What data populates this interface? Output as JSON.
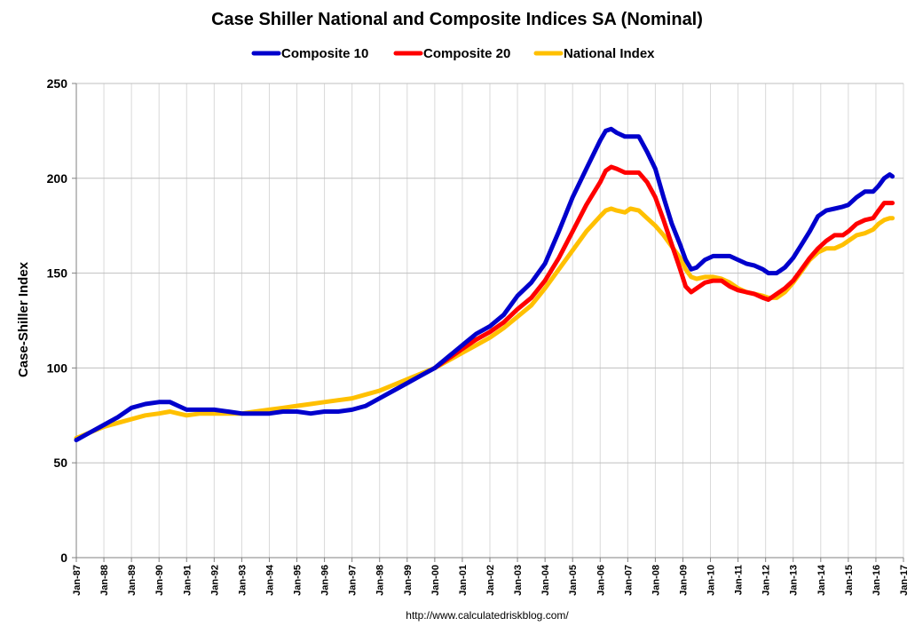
{
  "chart_data": {
    "type": "line",
    "title": "Case Shiller National and Composite Indices SA (Nominal)",
    "xlabel": "",
    "ylabel": "Case-Shiller Index",
    "ylim": [
      0,
      250
    ],
    "yticks": [
      0,
      50,
      100,
      150,
      200,
      250
    ],
    "xlim": [
      1987,
      2017
    ],
    "xtick_labels": [
      "Jan-87",
      "Jan-88",
      "Jan-89",
      "Jan-90",
      "Jan-91",
      "Jan-92",
      "Jan-93",
      "Jan-94",
      "Jan-95",
      "Jan-96",
      "Jan-97",
      "Jan-98",
      "Jan-99",
      "Jan-00",
      "Jan-01",
      "Jan-02",
      "Jan-03",
      "Jan-04",
      "Jan-05",
      "Jan-06",
      "Jan-07",
      "Jan-08",
      "Jan-09",
      "Jan-10",
      "Jan-11",
      "Jan-12",
      "Jan-13",
      "Jan-14",
      "Jan-15",
      "Jan-16",
      "Jan-17"
    ],
    "grid": true,
    "legend_position": "top-center",
    "series": [
      {
        "name": "Composite 10",
        "color": "#0000cc",
        "x": [
          1987,
          1987.5,
          1988,
          1988.5,
          1989,
          1989.5,
          1990,
          1990.4,
          1990.7,
          1991,
          1991.5,
          1992,
          1992.5,
          1993,
          1993.5,
          1994,
          1994.5,
          1995,
          1995.5,
          1996,
          1996.5,
          1997,
          1997.5,
          1998,
          1998.5,
          1999,
          1999.5,
          2000,
          2000.5,
          2001,
          2001.5,
          2002,
          2002.5,
          2003,
          2003.5,
          2004,
          2004.5,
          2005,
          2005.5,
          2006,
          2006.2,
          2006.4,
          2006.6,
          2006.9,
          2007.1,
          2007.4,
          2007.7,
          2008,
          2008.3,
          2008.6,
          2008.9,
          2009.1,
          2009.3,
          2009.5,
          2009.8,
          2010.1,
          2010.4,
          2010.7,
          2011,
          2011.3,
          2011.6,
          2011.9,
          2012.1,
          2012.4,
          2012.7,
          2013,
          2013.3,
          2013.6,
          2013.9,
          2014.2,
          2014.5,
          2014.8,
          2015,
          2015.3,
          2015.6,
          2015.9,
          2016.1,
          2016.3,
          2016.5,
          2016.6
        ],
        "y": [
          62,
          66,
          70,
          74,
          79,
          81,
          82,
          82,
          80,
          78,
          78,
          78,
          77,
          76,
          76,
          76,
          77,
          77,
          76,
          77,
          77,
          78,
          80,
          84,
          88,
          92,
          96,
          100,
          106,
          112,
          118,
          122,
          128,
          138,
          145,
          155,
          172,
          190,
          205,
          220,
          225,
          226,
          224,
          222,
          222,
          222,
          214,
          205,
          190,
          176,
          165,
          157,
          152,
          153,
          157,
          159,
          159,
          159,
          157,
          155,
          154,
          152,
          150,
          150,
          153,
          158,
          165,
          172,
          180,
          183,
          184,
          185,
          186,
          190,
          193,
          193,
          196,
          200,
          202,
          201
        ]
      },
      {
        "name": "Composite 20",
        "color": "#ff0000",
        "x": [
          2000,
          2000.5,
          2001,
          2001.5,
          2002,
          2002.5,
          2003,
          2003.5,
          2004,
          2004.5,
          2005,
          2005.5,
          2006,
          2006.2,
          2006.4,
          2006.6,
          2006.9,
          2007.1,
          2007.4,
          2007.7,
          2008,
          2008.3,
          2008.6,
          2008.9,
          2009.1,
          2009.3,
          2009.5,
          2009.8,
          2010.1,
          2010.4,
          2010.7,
          2011,
          2011.3,
          2011.6,
          2011.9,
          2012.1,
          2012.4,
          2012.7,
          2013,
          2013.3,
          2013.6,
          2013.9,
          2014.2,
          2014.5,
          2014.8,
          2015,
          2015.3,
          2015.6,
          2015.9,
          2016.1,
          2016.3,
          2016.5,
          2016.6
        ],
        "y": [
          100,
          105,
          110,
          115,
          119,
          124,
          131,
          137,
          146,
          158,
          172,
          186,
          198,
          204,
          206,
          205,
          203,
          203,
          203,
          198,
          190,
          178,
          165,
          152,
          143,
          140,
          142,
          145,
          146,
          146,
          143,
          141,
          140,
          139,
          137,
          136,
          139,
          142,
          146,
          152,
          158,
          163,
          167,
          170,
          170,
          172,
          176,
          178,
          179,
          183,
          187,
          187,
          187
        ]
      },
      {
        "name": "National Index",
        "color": "#ffc000",
        "x": [
          1987,
          1987.5,
          1988,
          1988.5,
          1989,
          1989.5,
          1990,
          1990.4,
          1990.7,
          1991,
          1991.5,
          1992,
          1992.5,
          1993,
          1993.5,
          1994,
          1994.5,
          1995,
          1995.5,
          1996,
          1996.5,
          1997,
          1997.5,
          1998,
          1998.5,
          1999,
          1999.5,
          2000,
          2000.5,
          2001,
          2001.5,
          2002,
          2002.5,
          2003,
          2003.5,
          2004,
          2004.5,
          2005,
          2005.5,
          2006,
          2006.2,
          2006.4,
          2006.6,
          2006.9,
          2007.1,
          2007.4,
          2007.7,
          2008,
          2008.3,
          2008.6,
          2008.9,
          2009.1,
          2009.3,
          2009.5,
          2009.8,
          2010.1,
          2010.4,
          2010.7,
          2011,
          2011.3,
          2011.6,
          2011.9,
          2012.1,
          2012.4,
          2012.7,
          2013,
          2013.3,
          2013.6,
          2013.9,
          2014.2,
          2014.5,
          2014.8,
          2015,
          2015.3,
          2015.6,
          2015.9,
          2016.1,
          2016.3,
          2016.5,
          2016.6
        ],
        "y": [
          63,
          66,
          69,
          71,
          73,
          75,
          76,
          77,
          76,
          75,
          76,
          76,
          76,
          76,
          77,
          78,
          79,
          80,
          81,
          82,
          83,
          84,
          86,
          88,
          91,
          94,
          97,
          100,
          104,
          108,
          112,
          116,
          121,
          127,
          133,
          142,
          152,
          162,
          172,
          180,
          183,
          184,
          183,
          182,
          184,
          183,
          179,
          175,
          170,
          164,
          158,
          152,
          148,
          147,
          148,
          148,
          147,
          145,
          142,
          140,
          139,
          138,
          137,
          137,
          140,
          145,
          151,
          157,
          161,
          163,
          163,
          165,
          167,
          170,
          171,
          173,
          176,
          178,
          179,
          179
        ]
      }
    ]
  },
  "source": "http://www.calculatedriskblog.com/"
}
